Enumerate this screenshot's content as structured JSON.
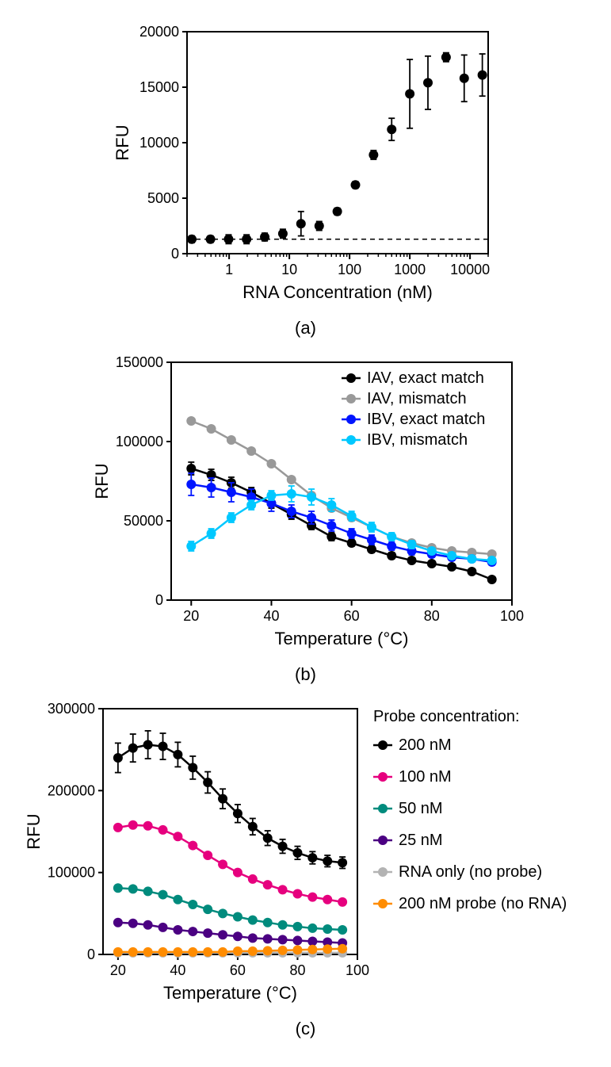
{
  "panelA": {
    "label": "(a)",
    "type": "scatter",
    "xlabel": "RNA Concentration (nM)",
    "ylabel": "RFU",
    "xscale": "log",
    "xlim": [
      0.2,
      20000
    ],
    "ylim": [
      0,
      20000
    ],
    "ytick_step": 5000,
    "xticks": [
      1,
      10,
      100,
      1000,
      10000
    ],
    "dashed_y": 1300,
    "marker_color": "#000000",
    "marker_radius": 6,
    "background_color": "#ffffff",
    "axis_color": "#000000",
    "axis_width": 2,
    "title_fontsize": 22,
    "tick_fontsize": 18,
    "data": [
      {
        "x": 0.24,
        "y": 1300,
        "err": 300
      },
      {
        "x": 0.49,
        "y": 1300,
        "err": 300
      },
      {
        "x": 0.98,
        "y": 1300,
        "err": 400
      },
      {
        "x": 1.95,
        "y": 1300,
        "err": 400
      },
      {
        "x": 3.9,
        "y": 1500,
        "err": 350
      },
      {
        "x": 7.8,
        "y": 1800,
        "err": 400
      },
      {
        "x": 15.6,
        "y": 2700,
        "err": 1100
      },
      {
        "x": 31.3,
        "y": 2500,
        "err": 400
      },
      {
        "x": 62.5,
        "y": 3800,
        "err": 300
      },
      {
        "x": 125,
        "y": 6200,
        "err": 300
      },
      {
        "x": 250,
        "y": 8900,
        "err": 400
      },
      {
        "x": 500,
        "y": 11200,
        "err": 1000
      },
      {
        "x": 1000,
        "y": 14400,
        "err": 3100
      },
      {
        "x": 2000,
        "y": 15400,
        "err": 2400
      },
      {
        "x": 4000,
        "y": 17700,
        "err": 400
      },
      {
        "x": 8000,
        "y": 15800,
        "err": 2100
      },
      {
        "x": 16000,
        "y": 16100,
        "err": 1900
      }
    ]
  },
  "panelB": {
    "label": "(b)",
    "type": "line",
    "xlabel": "Temperature (°C)",
    "ylabel": "RFU",
    "xlim": [
      15,
      100
    ],
    "ylim": [
      0,
      150000
    ],
    "ytick_step": 50000,
    "xticks": [
      20,
      40,
      60,
      80,
      100
    ],
    "background_color": "#ffffff",
    "axis_color": "#000000",
    "axis_width": 2,
    "title_fontsize": 22,
    "tick_fontsize": 18,
    "marker_radius": 6,
    "line_width": 2.5,
    "series": [
      {
        "name": "IAV, exact match",
        "color": "#000000",
        "x": [
          20,
          25,
          30,
          35,
          40,
          45,
          50,
          55,
          60,
          65,
          70,
          75,
          80,
          85,
          90,
          95
        ],
        "y": [
          83000,
          79000,
          74000,
          68000,
          61000,
          54000,
          47000,
          40000,
          36000,
          32000,
          28000,
          25000,
          23000,
          21000,
          18000,
          13000
        ],
        "err": [
          4000,
          3500,
          3500,
          3000,
          3000,
          3000,
          2500,
          2500,
          2000,
          2000,
          2000,
          1800,
          1500,
          1500,
          1500,
          1500
        ]
      },
      {
        "name": "IAV, mismatch",
        "color": "#999999",
        "x": [
          20,
          25,
          30,
          35,
          40,
          45,
          50,
          55,
          60,
          65,
          70,
          75,
          80,
          85,
          90,
          95
        ],
        "y": [
          113000,
          108000,
          101000,
          94000,
          86000,
          76000,
          66000,
          58000,
          52000,
          46000,
          40000,
          36000,
          33000,
          31000,
          30000,
          29000
        ],
        "err": [
          1500,
          1500,
          1500,
          1500,
          1500,
          1500,
          1500,
          1500,
          1500,
          1500,
          1500,
          1500,
          1500,
          1500,
          1500,
          1500
        ]
      },
      {
        "name": "IBV, exact match",
        "color": "#0015ff",
        "x": [
          20,
          25,
          30,
          35,
          40,
          45,
          50,
          55,
          60,
          65,
          70,
          75,
          80,
          85,
          90,
          95
        ],
        "y": [
          73000,
          71000,
          68000,
          65000,
          61000,
          56000,
          52000,
          47000,
          42000,
          38000,
          34000,
          31000,
          29000,
          27000,
          26000,
          24000
        ],
        "err": [
          7000,
          6000,
          6000,
          5000,
          5000,
          4000,
          4000,
          3500,
          3000,
          3000,
          2500,
          2500,
          2000,
          2000,
          2000,
          2000
        ]
      },
      {
        "name": "IBV, mismatch",
        "color": "#00c8ff",
        "x": [
          20,
          25,
          30,
          35,
          40,
          45,
          50,
          55,
          60,
          65,
          70,
          75,
          80,
          85,
          90,
          95
        ],
        "y": [
          34000,
          42000,
          52000,
          60000,
          66000,
          67000,
          65000,
          60000,
          53000,
          46000,
          40000,
          35000,
          31000,
          28000,
          26000,
          25000
        ],
        "err": [
          3000,
          3000,
          3000,
          3000,
          3000,
          5000,
          5000,
          4000,
          3000,
          3000,
          2500,
          2500,
          2000,
          2000,
          2000,
          2000
        ]
      }
    ]
  },
  "panelC": {
    "label": "(c)",
    "type": "line",
    "xlabel": "Temperature (°C)",
    "ylabel": "RFU",
    "xlim": [
      15,
      100
    ],
    "ylim": [
      0,
      300000
    ],
    "ytick_step": 100000,
    "xticks": [
      20,
      40,
      60,
      80,
      100
    ],
    "background_color": "#ffffff",
    "axis_color": "#000000",
    "axis_width": 2,
    "title_fontsize": 22,
    "tick_fontsize": 18,
    "marker_radius": 6,
    "line_width": 2.5,
    "legend_title": "Probe concentration:",
    "series": [
      {
        "name": "200 nM",
        "color": "#000000",
        "x": [
          20,
          25,
          30,
          35,
          40,
          45,
          50,
          55,
          60,
          65,
          70,
          75,
          80,
          85,
          90,
          95
        ],
        "y": [
          240000,
          252000,
          256000,
          254000,
          244000,
          228000,
          210000,
          190000,
          172000,
          156000,
          142000,
          132000,
          124000,
          118000,
          114000,
          112000
        ],
        "err": [
          18000,
          17000,
          17000,
          16000,
          15000,
          14000,
          13000,
          12000,
          11000,
          10000,
          9000,
          8500,
          8000,
          7500,
          7000,
          7000
        ]
      },
      {
        "name": "100 nM",
        "color": "#e6007e",
        "x": [
          20,
          25,
          30,
          35,
          40,
          45,
          50,
          55,
          60,
          65,
          70,
          75,
          80,
          85,
          90,
          95
        ],
        "y": [
          155000,
          158000,
          157000,
          152000,
          144000,
          133000,
          121000,
          110000,
          100000,
          92000,
          85000,
          79000,
          74000,
          70000,
          67000,
          64000
        ],
        "err": [
          2000,
          2000,
          2000,
          2000,
          2000,
          2000,
          2000,
          2000,
          2000,
          2000,
          2000,
          2000,
          2000,
          2000,
          2000,
          2000
        ]
      },
      {
        "name": "50 nM",
        "color": "#008b7d",
        "x": [
          20,
          25,
          30,
          35,
          40,
          45,
          50,
          55,
          60,
          65,
          70,
          75,
          80,
          85,
          90,
          95
        ],
        "y": [
          81000,
          80000,
          77000,
          73000,
          67000,
          61000,
          55000,
          50000,
          46000,
          42000,
          39000,
          36000,
          34000,
          32000,
          31000,
          30000
        ],
        "err": [
          1500,
          1500,
          1500,
          1500,
          1500,
          1500,
          1500,
          1500,
          1500,
          1500,
          1500,
          1500,
          1500,
          1500,
          1500,
          1500
        ]
      },
      {
        "name": "25 nM",
        "color": "#4b0082",
        "x": [
          20,
          25,
          30,
          35,
          40,
          45,
          50,
          55,
          60,
          65,
          70,
          75,
          80,
          85,
          90,
          95
        ],
        "y": [
          39000,
          38000,
          36000,
          33000,
          30000,
          28000,
          26000,
          24000,
          22000,
          20000,
          19000,
          18000,
          17000,
          16000,
          15000,
          14000
        ],
        "err": [
          1000,
          1000,
          1000,
          1000,
          1000,
          1000,
          1000,
          1000,
          1000,
          1000,
          1000,
          1000,
          1000,
          1000,
          1000,
          1000
        ]
      },
      {
        "name": "RNA only (no probe)",
        "color": "#b3b3b3",
        "x": [
          20,
          25,
          30,
          35,
          40,
          45,
          50,
          55,
          60,
          65,
          70,
          75,
          80,
          85,
          90,
          95
        ],
        "y": [
          2000,
          2000,
          2000,
          2000,
          2000,
          2000,
          2000,
          2000,
          2000,
          2000,
          2000,
          2000,
          2000,
          2000,
          2000,
          2000
        ],
        "err": [
          500,
          500,
          500,
          500,
          500,
          500,
          500,
          500,
          500,
          500,
          500,
          500,
          500,
          500,
          500,
          500
        ]
      },
      {
        "name": "200 nM probe (no RNA)",
        "color": "#ff8c00",
        "x": [
          20,
          25,
          30,
          35,
          40,
          45,
          50,
          55,
          60,
          65,
          70,
          75,
          80,
          85,
          90,
          95
        ],
        "y": [
          3000,
          3000,
          3000,
          3000,
          3000,
          3000,
          3000,
          3000,
          4000,
          4000,
          4500,
          5000,
          5500,
          6000,
          6500,
          7000
        ],
        "err": [
          500,
          500,
          500,
          500,
          500,
          500,
          500,
          500,
          500,
          500,
          500,
          500,
          500,
          500,
          500,
          500
        ]
      }
    ]
  }
}
